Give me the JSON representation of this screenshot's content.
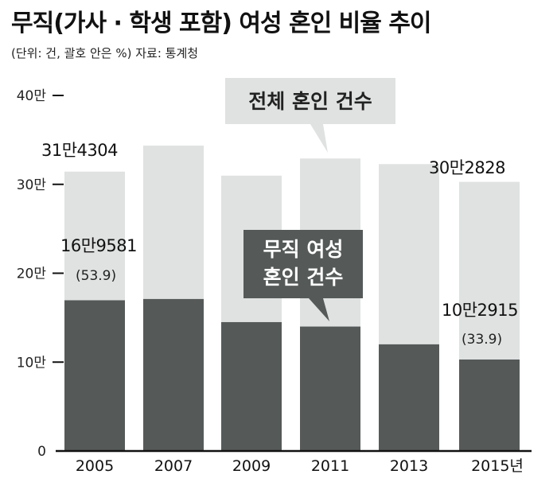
{
  "title": "무직(가사 · 학생 포함) 여성 혼인 비율 추이",
  "subtitle": "(단위: 건, 괄호 안은 %) 자료: 통계청",
  "colors": {
    "total": "#dfe2e1",
    "unemployed": "#555a59",
    "axis": "#111111"
  },
  "chart_data": {
    "type": "bar",
    "stacked": "overlay",
    "categories": [
      "2005",
      "2007",
      "2009",
      "2011",
      "2013",
      "2015년"
    ],
    "series": [
      {
        "name": "전체 혼인 건수",
        "values": [
          314304,
          343559,
          309759,
          329087,
          322807,
          302828
        ]
      },
      {
        "name": "무직 여성 혼인 건수",
        "values": [
          169581,
          171000,
          145000,
          140000,
          120000,
          102915
        ]
      }
    ],
    "ylim": [
      0,
      400000
    ],
    "yticks": [
      {
        "value": 0,
        "label": "0"
      },
      {
        "value": 100000,
        "label": "10만"
      },
      {
        "value": 200000,
        "label": "20만"
      },
      {
        "value": 300000,
        "label": "30만"
      },
      {
        "value": 400000,
        "label": "40만"
      }
    ],
    "annotations": {
      "total_2005": "31만4304",
      "unemp_2005": "16만9581",
      "pct_2005": "(53.9)",
      "total_2015": "30만2828",
      "unemp_2015": "10만2915",
      "pct_2015": "(33.9)",
      "callout_total": "전체 혼인 건수",
      "callout_unemp_line1": "무직 여성",
      "callout_unemp_line2": "혼인 건수"
    }
  }
}
